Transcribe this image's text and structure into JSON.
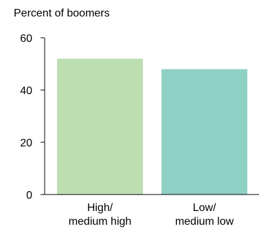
{
  "chart_data": {
    "type": "bar",
    "title": "",
    "ylabel": "Percent of boomers",
    "xlabel": "",
    "categories": [
      "High/\nmedium high",
      "Low/\nmedium low"
    ],
    "values": [
      52,
      48
    ],
    "ylim": [
      0,
      60
    ],
    "yticks": [
      0,
      20,
      40,
      60
    ],
    "grid": false,
    "legend": "none",
    "colors": [
      "#bcdfb1",
      "#8fd0c4"
    ],
    "axis_color": "#000000"
  }
}
